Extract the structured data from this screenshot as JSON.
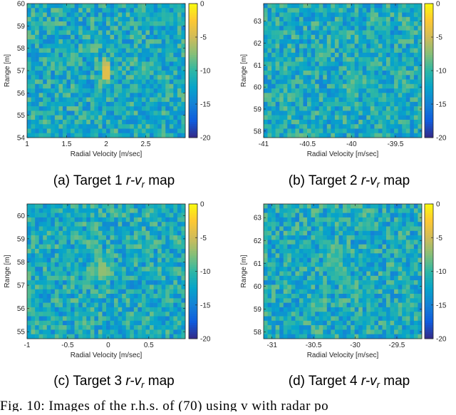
{
  "chart_data": [
    {
      "type": "heatmap",
      "panel_id": "a",
      "caption_prefix": "(a) Target 1 ",
      "caption_suffix": " map",
      "xlabel": "Radial Velocity [m/sec]",
      "ylabel": "Range [m]",
      "xlim": [
        1,
        3
      ],
      "ylim": [
        54,
        60
      ],
      "xticks": [
        "1",
        "1.5",
        "2",
        "2.5"
      ],
      "xtick_values": [
        1,
        1.5,
        2,
        2.5
      ],
      "yticks": [
        "54",
        "55",
        "56",
        "57",
        "58",
        "59",
        "60"
      ],
      "ytick_values": [
        54,
        55,
        56,
        57,
        58,
        59,
        60
      ],
      "colorbar": {
        "min": -20,
        "max": 0,
        "ticks": [
          "0",
          "-5",
          "-10",
          "-15",
          "-20"
        ],
        "tick_values": [
          0,
          -5,
          -10,
          -15,
          -20
        ]
      },
      "grid": {
        "nx": 40,
        "ny": 30
      },
      "background_db": [
        -15,
        -8
      ],
      "hotspots": [
        {
          "x": 2.0,
          "y": 57.0,
          "value_db": -3
        },
        {
          "x": 2.0,
          "y": 56.8,
          "value_db": -4
        },
        {
          "x": 2.0,
          "y": 57.2,
          "value_db": -5
        }
      ]
    },
    {
      "type": "heatmap",
      "panel_id": "b",
      "caption_prefix": "(b) Target 2 ",
      "caption_suffix": " map",
      "xlabel": "Radial Velocity [m/sec]",
      "ylabel": "Range [m]",
      "xlim": [
        -41,
        -39.2
      ],
      "ylim": [
        57.7,
        63.8
      ],
      "xticks": [
        "-41",
        "-40.5",
        "-40",
        "-39.5"
      ],
      "xtick_values": [
        -41,
        -40.5,
        -40,
        -39.5
      ],
      "yticks": [
        "58",
        "59",
        "60",
        "61",
        "62",
        "63"
      ],
      "ytick_values": [
        58,
        59,
        60,
        61,
        62,
        63
      ],
      "colorbar": {
        "min": -20,
        "max": 0,
        "ticks": [
          "0",
          "-5",
          "-10",
          "-15",
          "-20"
        ],
        "tick_values": [
          0,
          -5,
          -10,
          -15,
          -20
        ]
      },
      "grid": {
        "nx": 40,
        "ny": 30
      },
      "background_db": [
        -15,
        -8
      ],
      "hotspots": [
        {
          "x": -40.0,
          "y": 60.0,
          "value_db": -9
        },
        {
          "x": -40.0,
          "y": 60.6,
          "value_db": -10
        },
        {
          "x": -40.0,
          "y": 59.5,
          "value_db": -10
        },
        {
          "x": -39.95,
          "y": 60.3,
          "value_db": -10
        }
      ]
    },
    {
      "type": "heatmap",
      "panel_id": "c",
      "caption_prefix": "(c) Target 3 ",
      "caption_suffix": " map",
      "xlabel": "Radial Velocity [m/sec]",
      "ylabel": "Range [m]",
      "xlim": [
        -1,
        0.95
      ],
      "ylim": [
        54.7,
        60.5
      ],
      "xticks": [
        "-1",
        "-0.5",
        "0",
        "0.5"
      ],
      "xtick_values": [
        -1,
        -0.5,
        0,
        0.5
      ],
      "yticks": [
        "55",
        "56",
        "57",
        "58",
        "59",
        "60"
      ],
      "ytick_values": [
        55,
        56,
        57,
        58,
        59,
        60
      ],
      "colorbar": {
        "min": -20,
        "max": 0,
        "ticks": [
          "0",
          "-5",
          "-10",
          "-15",
          "-20"
        ],
        "tick_values": [
          0,
          -5,
          -10,
          -15,
          -20
        ]
      },
      "grid": {
        "nx": 40,
        "ny": 30
      },
      "background_db": [
        -15,
        -8
      ],
      "hotspots": [
        {
          "x": -0.1,
          "y": 57.6,
          "value_db": -7
        },
        {
          "x": -0.2,
          "y": 57.6,
          "value_db": -8
        },
        {
          "x": -0.05,
          "y": 57.6,
          "value_db": -7
        },
        {
          "x": -0.25,
          "y": 57.4,
          "value_db": -9
        }
      ]
    },
    {
      "type": "heatmap",
      "panel_id": "d",
      "caption_prefix": "(d) Target 4 ",
      "caption_suffix": " map",
      "xlabel": "Radial Velocity [m/sec]",
      "ylabel": "Range [m]",
      "xlim": [
        -31.1,
        -29.2
      ],
      "ylim": [
        57.7,
        63.6
      ],
      "xticks": [
        "-31",
        "-30.5",
        "-30",
        "-29.5"
      ],
      "xtick_values": [
        -31,
        -30.5,
        -30,
        -29.5
      ],
      "yticks": [
        "58",
        "59",
        "60",
        "61",
        "62",
        "63"
      ],
      "ytick_values": [
        58,
        59,
        60,
        61,
        62,
        63
      ],
      "colorbar": {
        "min": -20,
        "max": 0,
        "ticks": [
          "0",
          "-5",
          "-10",
          "-15",
          "-20"
        ],
        "tick_values": [
          0,
          -5,
          -10,
          -15,
          -20
        ]
      },
      "grid": {
        "nx": 40,
        "ny": 30
      },
      "background_db": [
        -15,
        -8
      ],
      "hotspots": [
        {
          "x": -30.3,
          "y": 61.1,
          "value_db": -9
        },
        {
          "x": -30.2,
          "y": 60.7,
          "value_db": -9
        },
        {
          "x": -30.1,
          "y": 60.3,
          "value_db": -9
        },
        {
          "x": -30.0,
          "y": 60.0,
          "value_db": -10
        }
      ]
    }
  ],
  "colors": {
    "parula": [
      "#352a87",
      "#0f5cdd",
      "#1481d6",
      "#06a4ca",
      "#2eb7a4",
      "#87bf77",
      "#d1bb59",
      "#fec832",
      "#f9fb0e"
    ]
  },
  "figure_caption_fragment": "Fig. 10: Images of the r.h.s. of (70) using v with radar po"
}
